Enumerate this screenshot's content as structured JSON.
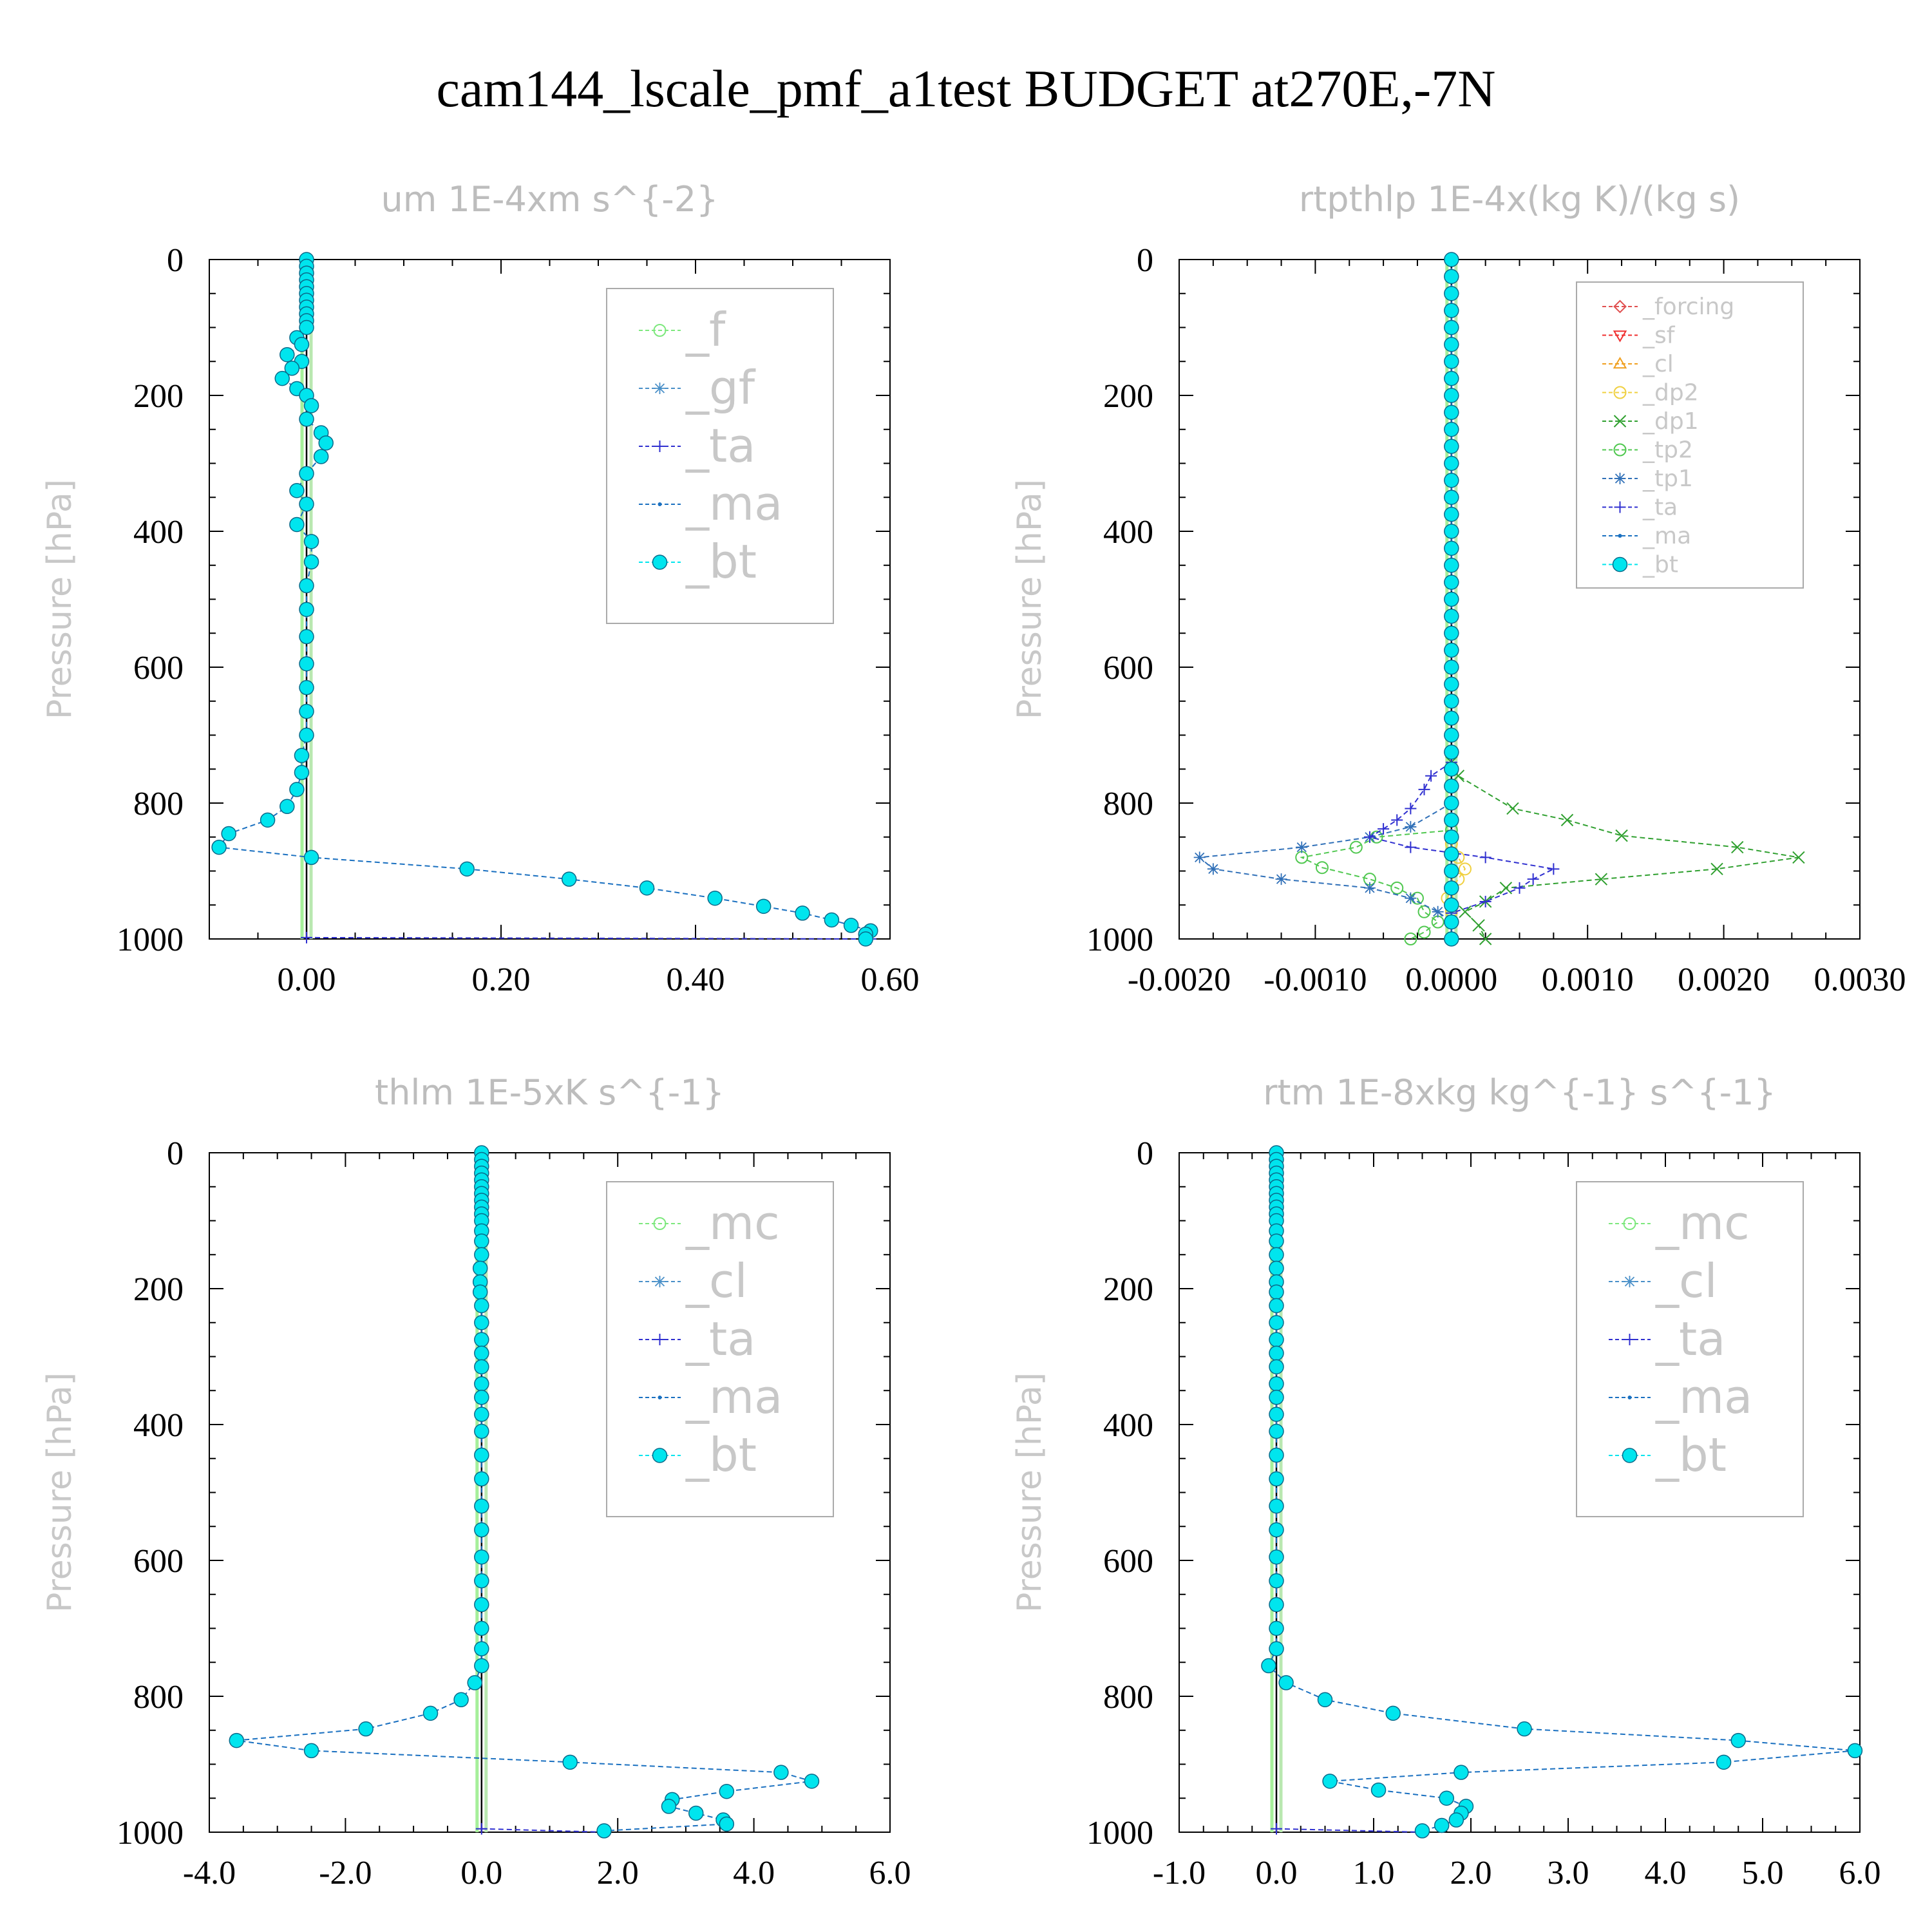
{
  "figure_title": "cam144_lscale_pmf_a1test  BUDGET at270E,-7N",
  "chart_data": [
    {
      "type": "line",
      "title": "um  1E-4xm s^{-2}",
      "ylabel": "Pressure [hPa]",
      "xlabel": "",
      "xlim": [
        -0.1,
        0.6
      ],
      "ylim": [
        1000,
        0
      ],
      "xticks": [
        "0.00",
        "0.20",
        "0.40",
        "0.60"
      ],
      "xtick_values": [
        0,
        0.2,
        0.4,
        0.6
      ],
      "yticks": [
        "0",
        "200",
        "400",
        "600",
        "800",
        "1000"
      ],
      "legend_size": "large",
      "series": [
        {
          "name": "_f",
          "color": "#7ee87e",
          "marker": "circle-open",
          "p": [],
          "x": []
        },
        {
          "name": "_gf",
          "color": "#4a90c8",
          "marker": "asterisk",
          "p": [],
          "x": []
        },
        {
          "name": "_ta",
          "color": "#3030d0",
          "marker": "plus",
          "p": [
            998,
            1000
          ],
          "x": [
            0.0,
            0.58
          ]
        },
        {
          "name": "_ma",
          "color": "#1a70c0",
          "marker": "dot",
          "p": [],
          "x": []
        },
        {
          "name": "_bt",
          "color": "#00e5ee",
          "marker": "dot-filled",
          "p": [
            0,
            10,
            20,
            30,
            40,
            50,
            60,
            70,
            80,
            90,
            100,
            115,
            125,
            140,
            150,
            160,
            175,
            190,
            200,
            215,
            235,
            255,
            270,
            290,
            315,
            340,
            360,
            390,
            415,
            445,
            480,
            515,
            555,
            595,
            630,
            665,
            700,
            730,
            755,
            780,
            805,
            825,
            845,
            865,
            880,
            897,
            912,
            925,
            940,
            952,
            962,
            972,
            980,
            988,
            993,
            1000
          ],
          "x": [
            0,
            0,
            0,
            0,
            0,
            0,
            0,
            0,
            0,
            0,
            0,
            -0.01,
            -0.005,
            -0.02,
            -0.005,
            -0.015,
            -0.025,
            -0.01,
            0,
            0.005,
            0,
            0.015,
            0.02,
            0.015,
            0,
            -0.01,
            0,
            -0.01,
            0.005,
            0.005,
            0,
            0,
            0,
            0,
            0,
            0,
            0,
            -0.005,
            -0.005,
            -0.01,
            -0.02,
            -0.04,
            -0.08,
            -0.09,
            0.005,
            0.165,
            0.27,
            0.35,
            0.42,
            0.47,
            0.51,
            0.54,
            0.56,
            0.58,
            0.575,
            0.575
          ]
        }
      ]
    },
    {
      "type": "line",
      "title": "rtpthlp  1E-4x(kg K)/(kg s)",
      "ylabel": "Pressure [hPa]",
      "xlabel": "",
      "xlim": [
        -0.002,
        0.003
      ],
      "ylim": [
        1000,
        0
      ],
      "xticks": [
        "-0.0020",
        "-0.0010",
        "0.0000",
        "0.0010",
        "0.0020",
        "0.0030"
      ],
      "xtick_values": [
        -0.002,
        -0.001,
        0,
        0.001,
        0.002,
        0.003
      ],
      "yticks": [
        "0",
        "200",
        "400",
        "600",
        "800",
        "1000"
      ],
      "legend_size": "small",
      "series": [
        {
          "name": "_forcing",
          "color": "#e05050",
          "marker": "diamond-open",
          "p": [],
          "x": []
        },
        {
          "name": "_sf",
          "color": "#f03030",
          "marker": "triangle-down",
          "p": [],
          "x": []
        },
        {
          "name": "_cl",
          "color": "#f0a020",
          "marker": "triangle-up",
          "p": [],
          "x": []
        },
        {
          "name": "_dp2",
          "color": "#f0d040",
          "marker": "circle-open",
          "p": [
            860,
            880,
            897,
            912,
            925,
            940,
            960
          ],
          "x": [
            0,
            5e-05,
            0.0001,
            5e-05,
            0,
            -3e-05,
            0
          ]
        },
        {
          "name": "_dp1",
          "color": "#30a030",
          "marker": "x",
          "p": [
            740,
            760,
            808,
            825,
            848,
            865,
            880,
            897,
            912,
            925,
            945,
            960,
            980,
            1000
          ],
          "x": [
            0,
            5e-05,
            0.00045,
            0.00085,
            0.00125,
            0.0021,
            0.00255,
            0.00195,
            0.0011,
            0.0004,
            0.00025,
            0.0001,
            0.0002,
            0.00025
          ]
        },
        {
          "name": "_tp2",
          "color": "#50c850",
          "marker": "circle-open",
          "p": [
            840,
            850,
            865,
            880,
            895,
            912,
            925,
            940,
            960,
            975,
            990,
            1000
          ],
          "x": [
            0,
            -0.00055,
            -0.0007,
            -0.0011,
            -0.00095,
            -0.0006,
            -0.0004,
            -0.00025,
            -0.0002,
            -0.0001,
            -0.0002,
            -0.0003
          ]
        },
        {
          "name": "_tp1",
          "color": "#3070b8",
          "marker": "asterisk",
          "p": [
            800,
            835,
            850,
            865,
            880,
            897,
            912,
            925,
            940,
            960,
            975
          ],
          "x": [
            0,
            -0.0003,
            -0.0006,
            -0.0011,
            -0.00185,
            -0.00175,
            -0.00125,
            -0.0006,
            -0.0003,
            -0.0001,
            0
          ]
        },
        {
          "name": "_ta",
          "color": "#3030d0",
          "marker": "plus",
          "p": [
            740,
            760,
            780,
            808,
            825,
            838,
            850,
            865,
            880,
            897,
            912,
            925,
            945,
            962
          ],
          "x": [
            0,
            -0.00015,
            -0.0002,
            -0.0003,
            -0.0004,
            -0.0005,
            -0.0006,
            -0.0003,
            0.00025,
            0.00075,
            0.0006,
            0.0005,
            0.00025,
            0
          ]
        },
        {
          "name": "_ma",
          "color": "#1a70c0",
          "marker": "dot",
          "p": [],
          "x": []
        },
        {
          "name": "_bt",
          "color": "#00e5ee",
          "marker": "dot-filled",
          "p": [
            0,
            25,
            50,
            75,
            100,
            125,
            150,
            175,
            200,
            225,
            250,
            275,
            300,
            325,
            350,
            375,
            400,
            425,
            450,
            475,
            500,
            525,
            550,
            575,
            600,
            625,
            650,
            675,
            700,
            725,
            750,
            775,
            800,
            825,
            850,
            875,
            900,
            925,
            950,
            975,
            1000
          ],
          "x": [
            0,
            0,
            0,
            0,
            0,
            0,
            0,
            0,
            0,
            0,
            0,
            0,
            0,
            0,
            0,
            0,
            0,
            0,
            0,
            0,
            0,
            0,
            0,
            0,
            0,
            0,
            0,
            0,
            0,
            0,
            0,
            0,
            0,
            0,
            0,
            0,
            0,
            0,
            0,
            0,
            0
          ]
        }
      ]
    },
    {
      "type": "line",
      "title": "thlm  1E-5xK s^{-1}",
      "ylabel": "Pressure [hPa]",
      "xlabel": "",
      "xlim": [
        -4,
        6
      ],
      "ylim": [
        1000,
        0
      ],
      "xticks": [
        "-4.0",
        "-2.0",
        "0.0",
        "2.0",
        "4.0",
        "6.0"
      ],
      "xtick_values": [
        -4,
        -2,
        0,
        2,
        4,
        6
      ],
      "yticks": [
        "0",
        "200",
        "400",
        "600",
        "800",
        "1000"
      ],
      "legend_size": "large",
      "series": [
        {
          "name": "_mc",
          "color": "#7ee87e",
          "marker": "circle-open",
          "p": [],
          "x": []
        },
        {
          "name": "_cl",
          "color": "#4a90c8",
          "marker": "asterisk",
          "p": [],
          "x": []
        },
        {
          "name": "_ta",
          "color": "#3030d0",
          "marker": "plus",
          "p": [
            995,
            1000
          ],
          "x": [
            0,
            1.8
          ]
        },
        {
          "name": "_ma",
          "color": "#1a70c0",
          "marker": "dot",
          "p": [],
          "x": []
        },
        {
          "name": "_bt",
          "color": "#00e5ee",
          "marker": "dot-filled",
          "p": [
            0,
            10,
            20,
            30,
            40,
            50,
            60,
            70,
            80,
            90,
            100,
            115,
            130,
            150,
            170,
            190,
            205,
            225,
            250,
            275,
            295,
            315,
            340,
            360,
            385,
            410,
            445,
            480,
            520,
            555,
            595,
            630,
            665,
            700,
            730,
            755,
            780,
            805,
            825,
            848,
            865,
            880,
            897,
            912,
            925,
            940,
            952,
            962,
            972,
            982,
            988,
            998
          ],
          "x": [
            0,
            0,
            0,
            0,
            0,
            0,
            0,
            0,
            0,
            0,
            0,
            0,
            0,
            0,
            -0.02,
            -0.02,
            -0.02,
            0,
            0,
            0,
            0,
            0,
            0,
            0,
            0,
            0,
            0,
            0,
            0,
            0,
            0,
            0,
            0,
            0,
            0,
            0,
            -0.1,
            -0.3,
            -0.75,
            -1.7,
            -3.6,
            -2.5,
            1.3,
            4.4,
            4.85,
            3.6,
            2.8,
            2.75,
            3.15,
            3.55,
            3.6,
            1.8
          ]
        }
      ]
    },
    {
      "type": "line",
      "title": "rtm  1E-8xkg kg^{-1} s^{-1}",
      "ylabel": "Pressure [hPa]",
      "xlabel": "",
      "xlim": [
        -1,
        6
      ],
      "ylim": [
        1000,
        0
      ],
      "xticks": [
        "-1.0",
        "0.0",
        "1.0",
        "2.0",
        "3.0",
        "4.0",
        "5.0",
        "6.0"
      ],
      "xtick_values": [
        -1,
        0,
        1,
        2,
        3,
        4,
        5,
        6
      ],
      "yticks": [
        "0",
        "200",
        "400",
        "600",
        "800",
        "1000"
      ],
      "legend_size": "large",
      "series": [
        {
          "name": "_mc",
          "color": "#7ee87e",
          "marker": "circle-open",
          "p": [],
          "x": []
        },
        {
          "name": "_cl",
          "color": "#4a90c8",
          "marker": "asterisk",
          "p": [],
          "x": []
        },
        {
          "name": "_ta",
          "color": "#3030d0",
          "marker": "plus",
          "p": [
            995,
            1000
          ],
          "x": [
            0,
            1.5
          ]
        },
        {
          "name": "_ma",
          "color": "#1a70c0",
          "marker": "dot",
          "p": [],
          "x": []
        },
        {
          "name": "_bt",
          "color": "#00e5ee",
          "marker": "dot-filled",
          "p": [
            0,
            10,
            20,
            30,
            40,
            50,
            60,
            70,
            80,
            90,
            100,
            115,
            130,
            150,
            170,
            190,
            205,
            225,
            250,
            275,
            295,
            315,
            340,
            360,
            385,
            410,
            445,
            480,
            520,
            555,
            595,
            630,
            665,
            700,
            730,
            755,
            780,
            805,
            825,
            848,
            865,
            880,
            897,
            912,
            925,
            938,
            950,
            962,
            972,
            982,
            990,
            998
          ],
          "x": [
            0,
            0,
            0,
            0,
            0,
            0,
            0,
            0,
            0,
            0,
            0,
            0,
            0,
            0,
            0,
            0,
            0,
            0,
            0,
            0,
            0,
            0,
            0,
            0,
            0,
            0,
            0,
            0,
            0,
            0,
            0,
            0,
            0,
            0,
            0,
            -0.08,
            0.1,
            0.5,
            1.2,
            2.55,
            4.75,
            5.95,
            4.6,
            1.9,
            0.55,
            1.05,
            1.75,
            1.95,
            1.9,
            1.85,
            1.7,
            1.5
          ]
        }
      ]
    }
  ]
}
